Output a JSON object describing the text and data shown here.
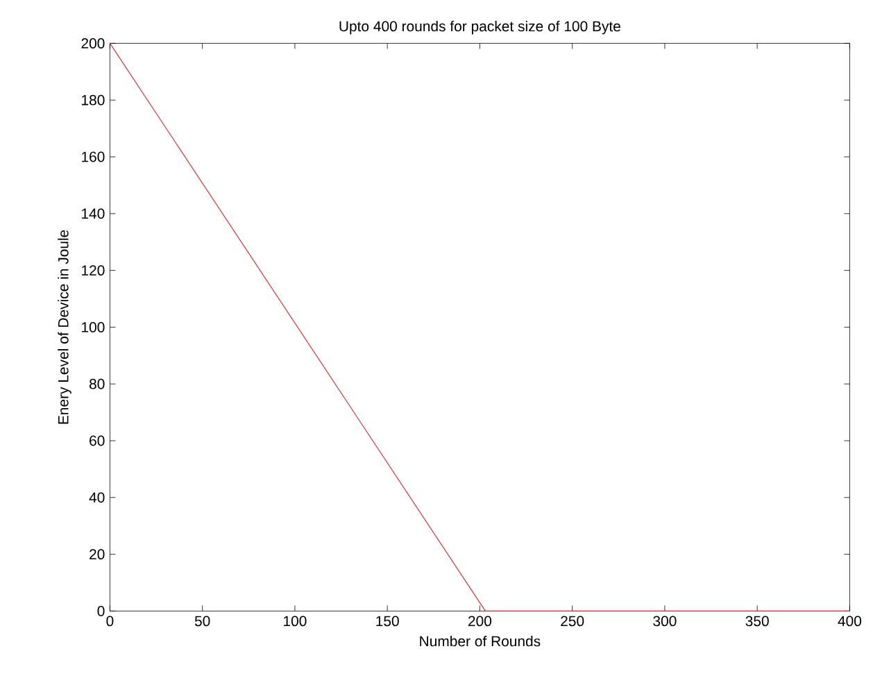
{
  "chart_data": {
    "type": "line",
    "title": "Upto 400 rounds for packet size of 100 Byte",
    "xlabel": "Number of Rounds",
    "ylabel": "Enery Level of Device in Joule",
    "x": [
      0,
      203,
      400
    ],
    "series": [
      {
        "color": "#e03030",
        "values": [
          200,
          0,
          0
        ]
      }
    ],
    "xlim": [
      0,
      400
    ],
    "ylim": [
      0,
      200
    ],
    "xticks": [
      0,
      50,
      100,
      150,
      200,
      250,
      300,
      350,
      400
    ],
    "yticks": [
      0,
      20,
      40,
      60,
      80,
      100,
      120,
      140,
      160,
      180,
      200
    ],
    "marker": "none",
    "line_style": "solid"
  }
}
